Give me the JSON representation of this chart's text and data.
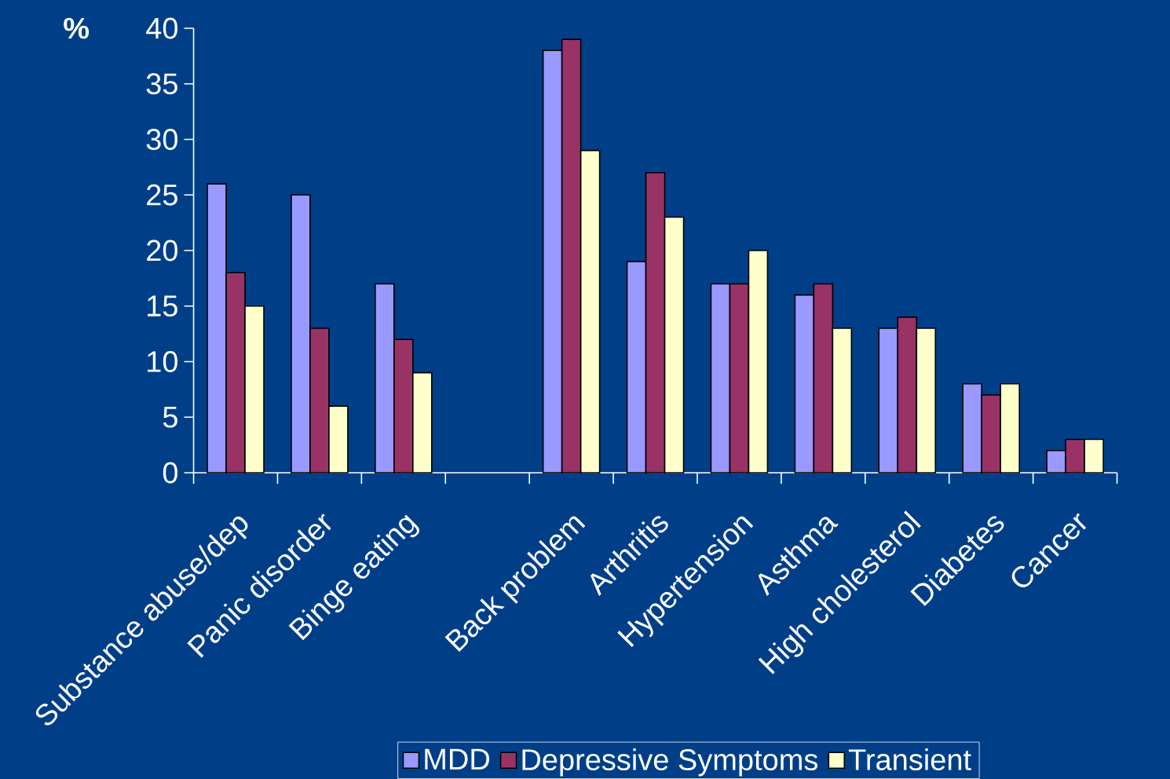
{
  "chart_data": {
    "type": "bar",
    "ylabel": "%",
    "categories": [
      "Substance abuse/dep",
      "Panic disorder",
      "Binge eating",
      null,
      "Back problem",
      "Arthritis",
      "Hypertension",
      "Asthma",
      "High cholesterol",
      "Diabetes",
      "Cancer"
    ],
    "series": [
      {
        "name": "MDD",
        "color": "#9999ff",
        "values": [
          26,
          25,
          17,
          null,
          38,
          19,
          17,
          16,
          13,
          8,
          2
        ]
      },
      {
        "name": "Depressive Symptoms",
        "color": "#993366",
        "values": [
          18,
          13,
          12,
          null,
          39,
          27,
          17,
          17,
          14,
          7,
          3
        ]
      },
      {
        "name": "Transient",
        "color": "#ffffcc",
        "values": [
          15,
          6,
          9,
          null,
          29,
          23,
          20,
          13,
          13,
          8,
          3
        ]
      }
    ],
    "ylim": [
      0,
      40
    ],
    "yticks": [
      0,
      5,
      10,
      15,
      20,
      25,
      30,
      35,
      40
    ],
    "grid": false,
    "legend": "bottom"
  }
}
